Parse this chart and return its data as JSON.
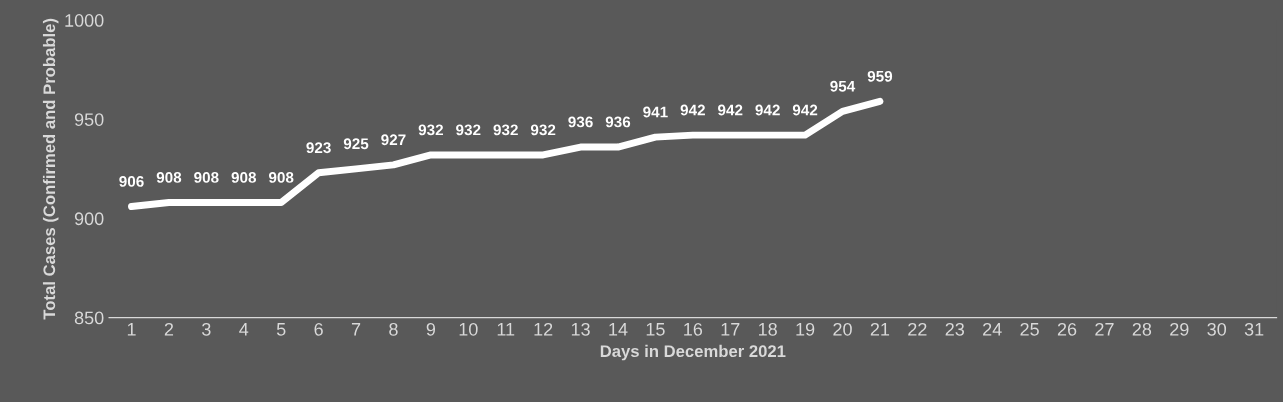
{
  "chart_data": {
    "type": "line",
    "xlabel": "Days in December 2021",
    "ylabel": "Total Cases (Confirmed and Probable)",
    "categories": [
      "1",
      "2",
      "3",
      "4",
      "5",
      "6",
      "7",
      "8",
      "9",
      "10",
      "11",
      "12",
      "13",
      "14",
      "15",
      "16",
      "17",
      "18",
      "19",
      "20",
      "21",
      "22",
      "23",
      "24",
      "25",
      "26",
      "27",
      "28",
      "29",
      "30",
      "31"
    ],
    "series": [
      {
        "color": "#ffffff",
        "values": [
          906,
          908,
          908,
          908,
          908,
          923,
          925,
          927,
          932,
          932,
          932,
          932,
          936,
          936,
          941,
          942,
          942,
          942,
          942,
          954,
          959,
          null,
          null,
          null,
          null,
          null,
          null,
          null,
          null,
          null,
          null
        ]
      }
    ],
    "ylim": [
      850,
      1000
    ],
    "yticks": [
      850,
      900,
      950,
      1000
    ],
    "data_labels": true,
    "grid": false,
    "legend": false,
    "marker": "none",
    "line_style": "solid"
  }
}
